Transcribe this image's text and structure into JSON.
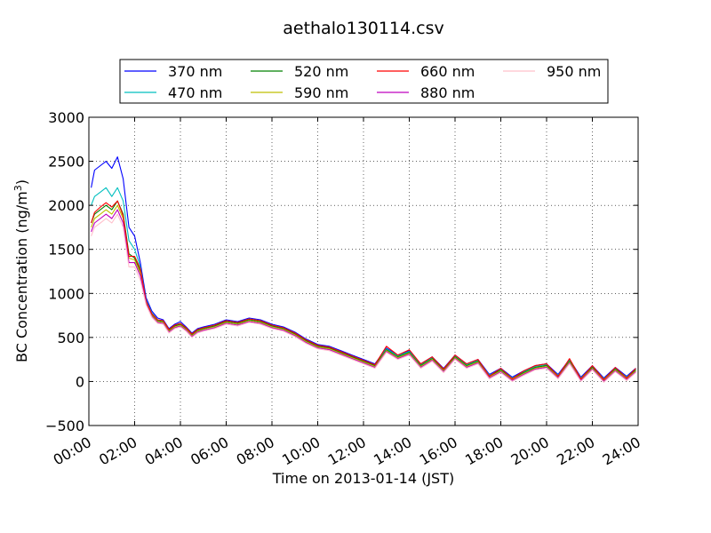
{
  "chart_data": {
    "type": "line",
    "title": "aethalo130114.csv",
    "xlabel": "Time on 2013-01-14 (JST)",
    "ylabel_main": "BC Concentration (ng/m",
    "ylabel_sup": "3",
    "ylabel_end": ")",
    "xlim": [
      "00:00",
      "24:00"
    ],
    "ylim": [
      -500,
      3000
    ],
    "x_ticks": [
      "00:00",
      "02:00",
      "04:00",
      "06:00",
      "08:00",
      "10:00",
      "12:00",
      "14:00",
      "16:00",
      "18:00",
      "20:00",
      "22:00",
      "24:00"
    ],
    "y_ticks": [
      -500,
      0,
      500,
      1000,
      1500,
      2000,
      2500,
      3000
    ],
    "y_tick_labels": [
      "−500",
      "0",
      "500",
      "1000",
      "1500",
      "2000",
      "2500",
      "3000"
    ],
    "grid": true,
    "legend_placement": "top-center",
    "x_hours": [
      0.1,
      0.25,
      0.5,
      0.75,
      1.0,
      1.25,
      1.5,
      1.75,
      2.0,
      2.25,
      2.5,
      2.75,
      3.0,
      3.25,
      3.5,
      3.75,
      4.0,
      4.25,
      4.5,
      4.75,
      5.0,
      5.5,
      6.0,
      6.5,
      7.0,
      7.5,
      8.0,
      8.5,
      9.0,
      9.5,
      10.0,
      10.5,
      11.0,
      11.5,
      12.0,
      12.5,
      13.0,
      13.5,
      14.0,
      14.5,
      15.0,
      15.5,
      16.0,
      16.5,
      17.0,
      17.5,
      18.0,
      18.5,
      19.0,
      19.5,
      20.0,
      20.5,
      21.0,
      21.5,
      22.0,
      22.5,
      23.0,
      23.5,
      23.9
    ],
    "series": [
      {
        "name": "370 nm",
        "color": "#0000ff",
        "values": [
          2200,
          2400,
          2450,
          2500,
          2420,
          2550,
          2300,
          1750,
          1650,
          1350,
          950,
          800,
          720,
          700,
          600,
          650,
          680,
          620,
          550,
          600,
          620,
          650,
          700,
          680,
          720,
          700,
          650,
          620,
          560,
          480,
          420,
          400,
          350,
          300,
          250,
          200,
          380,
          300,
          350,
          200,
          280,
          150,
          300,
          200,
          250,
          80,
          150,
          50,
          120,
          180,
          200,
          80,
          250,
          50,
          180,
          40,
          160,
          60,
          150
        ]
      },
      {
        "name": "470 nm",
        "color": "#00bfbf",
        "values": [
          2000,
          2100,
          2150,
          2200,
          2100,
          2200,
          2050,
          1600,
          1500,
          1300,
          920,
          780,
          700,
          690,
          590,
          640,
          660,
          610,
          540,
          590,
          610,
          640,
          690,
          670,
          710,
          690,
          640,
          610,
          550,
          470,
          410,
          390,
          340,
          290,
          240,
          190,
          370,
          290,
          340,
          190,
          270,
          140,
          290,
          190,
          240,
          70,
          140,
          40,
          110,
          170,
          190,
          70,
          240,
          40,
          170,
          30,
          150,
          50,
          140
        ]
      },
      {
        "name": "520 nm",
        "color": "#008000",
        "values": [
          1800,
          1900,
          1950,
          2000,
          1950,
          2050,
          1900,
          1450,
          1400,
          1250,
          900,
          760,
          690,
          680,
          580,
          630,
          650,
          600,
          530,
          580,
          600,
          630,
          680,
          660,
          700,
          680,
          630,
          600,
          540,
          460,
          400,
          380,
          330,
          280,
          230,
          180,
          360,
          280,
          330,
          180,
          260,
          130,
          280,
          180,
          230,
          60,
          130,
          30,
          100,
          160,
          180,
          60,
          230,
          30,
          160,
          20,
          140,
          40,
          130
        ]
      },
      {
        "name": "590 nm",
        "color": "#bfbf00",
        "values": [
          1750,
          1850,
          1900,
          1950,
          1900,
          2000,
          1850,
          1400,
          1380,
          1230,
          890,
          750,
          680,
          670,
          570,
          620,
          640,
          590,
          520,
          570,
          590,
          620,
          670,
          650,
          690,
          670,
          620,
          590,
          530,
          450,
          390,
          370,
          320,
          270,
          220,
          170,
          350,
          270,
          320,
          170,
          250,
          120,
          270,
          170,
          220,
          50,
          120,
          20,
          90,
          150,
          170,
          50,
          220,
          20,
          150,
          10,
          130,
          30,
          120
        ]
      },
      {
        "name": "660 nm",
        "color": "#ff0000",
        "values": [
          1800,
          1920,
          1980,
          2030,
          1980,
          2050,
          1880,
          1420,
          1420,
          1280,
          910,
          770,
          700,
          690,
          590,
          640,
          660,
          610,
          540,
          590,
          610,
          640,
          690,
          670,
          710,
          690,
          640,
          610,
          550,
          470,
          410,
          390,
          340,
          290,
          240,
          190,
          400,
          300,
          360,
          200,
          280,
          140,
          300,
          200,
          250,
          60,
          150,
          30,
          120,
          180,
          200,
          60,
          260,
          30,
          180,
          20,
          160,
          40,
          150
        ]
      },
      {
        "name": "880 nm",
        "color": "#bf00bf",
        "values": [
          1700,
          1800,
          1850,
          1900,
          1850,
          1950,
          1800,
          1350,
          1350,
          1200,
          880,
          740,
          670,
          660,
          560,
          610,
          630,
          580,
          510,
          560,
          580,
          610,
          660,
          640,
          680,
          660,
          610,
          580,
          520,
          440,
          380,
          360,
          310,
          260,
          210,
          160,
          340,
          260,
          310,
          160,
          240,
          110,
          260,
          160,
          210,
          40,
          110,
          10,
          80,
          140,
          160,
          40,
          210,
          10,
          140,
          0,
          120,
          20,
          110
        ]
      },
      {
        "name": "950 nm",
        "color": "#ffc0cb",
        "values": [
          1650,
          1750,
          1800,
          1850,
          1800,
          1900,
          1750,
          1300,
          1300,
          1150,
          870,
          730,
          660,
          650,
          550,
          600,
          620,
          570,
          500,
          550,
          570,
          600,
          650,
          630,
          670,
          650,
          600,
          570,
          510,
          430,
          370,
          350,
          300,
          250,
          200,
          150,
          330,
          250,
          300,
          150,
          230,
          100,
          250,
          150,
          200,
          30,
          100,
          0,
          70,
          130,
          150,
          30,
          200,
          0,
          130,
          -10,
          110,
          10,
          100
        ]
      }
    ]
  }
}
